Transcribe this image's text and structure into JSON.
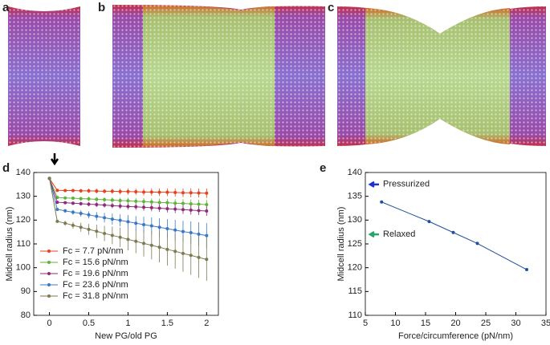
{
  "panel_labels": [
    "a",
    "b",
    "c",
    "d",
    "e"
  ],
  "chart_data": [
    {
      "type": "line",
      "xlabel": "New PG/old PG",
      "ylabel": "Midcell radius (nm)",
      "xlim": [
        -0.2,
        2.15
      ],
      "xticks": [
        0,
        0.5,
        1,
        1.5,
        2
      ],
      "ylim": [
        80,
        140
      ],
      "yticks": [
        80,
        90,
        100,
        110,
        120,
        130,
        140
      ],
      "x": [
        0,
        0.1,
        0.2,
        0.3,
        0.4,
        0.5,
        0.6,
        0.7,
        0.8,
        0.9,
        1.0,
        1.1,
        1.2,
        1.3,
        1.4,
        1.5,
        1.6,
        1.7,
        1.8,
        1.9,
        2.0
      ],
      "series": [
        {
          "name": "Fc = 7.7 pN/nm",
          "color": "#e8401c",
          "values": [
            137.5,
            132.5,
            132.4,
            132.4,
            132.3,
            132.3,
            132.2,
            132.1,
            132.1,
            132.0,
            132.0,
            131.9,
            131.8,
            131.8,
            131.7,
            131.7,
            131.6,
            131.5,
            131.5,
            131.4,
            131.3
          ],
          "errors": [
            0,
            0.5,
            0.6,
            0.7,
            0.8,
            0.9,
            1.0,
            1.0,
            1.1,
            1.2,
            1.3,
            1.3,
            1.4,
            1.5,
            1.6,
            1.6,
            1.7,
            1.8,
            1.9,
            1.9,
            2.0
          ]
        },
        {
          "name": "Fc = 15.6 pN/nm",
          "color": "#5fb33a",
          "values": [
            137.5,
            129.5,
            129.3,
            129.2,
            129.0,
            128.9,
            128.7,
            128.6,
            128.4,
            128.2,
            128.1,
            127.9,
            127.8,
            127.6,
            127.4,
            127.3,
            127.1,
            127.0,
            126.8,
            126.7,
            126.5
          ],
          "errors": [
            0,
            0.5,
            0.6,
            0.7,
            0.8,
            0.9,
            1.0,
            1.0,
            1.1,
            1.2,
            1.3,
            1.3,
            1.4,
            1.5,
            1.6,
            1.6,
            1.7,
            1.8,
            1.9,
            1.9,
            2.0
          ]
        },
        {
          "name": "Fc = 19.6 pN/nm",
          "color": "#8e2a7a",
          "values": [
            137.5,
            127.5,
            127.3,
            127.1,
            126.9,
            126.7,
            126.5,
            126.3,
            126.1,
            125.9,
            125.7,
            125.6,
            125.4,
            125.2,
            125.0,
            124.8,
            124.6,
            124.4,
            124.2,
            124.0,
            123.8
          ],
          "errors": [
            0,
            0.5,
            0.6,
            0.7,
            0.8,
            0.9,
            1.0,
            1.0,
            1.1,
            1.2,
            1.3,
            1.3,
            1.4,
            1.5,
            1.6,
            1.6,
            1.7,
            1.8,
            1.9,
            1.9,
            2.0
          ]
        },
        {
          "name": "Fc = 23.6 pN/nm",
          "color": "#3a78c4",
          "values": [
            137.5,
            124.5,
            123.9,
            123.3,
            122.8,
            122.2,
            121.6,
            121.0,
            120.4,
            119.9,
            119.3,
            118.7,
            118.1,
            117.6,
            117.0,
            116.4,
            115.8,
            115.2,
            114.7,
            114.1,
            113.5
          ],
          "errors": [
            0,
            0.5,
            0.8,
            1.0,
            1.3,
            1.5,
            1.8,
            2.0,
            2.3,
            2.5,
            2.8,
            3.0,
            3.3,
            3.5,
            3.8,
            4.0,
            4.3,
            4.5,
            4.8,
            5.0,
            5.2
          ]
        },
        {
          "name": "Fc = 31.8 pN/nm",
          "color": "#7d7a52",
          "values": [
            137.5,
            119.5,
            118.7,
            117.8,
            117.0,
            116.1,
            115.3,
            114.4,
            113.6,
            112.8,
            111.9,
            111.1,
            110.2,
            109.4,
            108.6,
            107.7,
            106.9,
            106.0,
            105.2,
            104.3,
            103.5
          ],
          "errors": [
            0,
            0.5,
            1.0,
            1.4,
            1.9,
            2.3,
            2.8,
            3.2,
            3.7,
            4.1,
            4.6,
            5.0,
            5.5,
            5.9,
            6.4,
            6.8,
            7.3,
            7.7,
            8.2,
            8.6,
            9.0
          ]
        }
      ]
    },
    {
      "type": "line",
      "xlabel": "Force/circumference (pN/nm)",
      "ylabel": "Midcell radius (nm)",
      "xlim": [
        5,
        35
      ],
      "xticks": [
        5,
        10,
        15,
        20,
        25,
        30,
        35
      ],
      "ylim": [
        110,
        140
      ],
      "yticks": [
        110,
        115,
        120,
        125,
        130,
        135,
        140
      ],
      "x": [
        7.7,
        15.6,
        19.6,
        23.6,
        31.8
      ],
      "series": [
        {
          "color": "#1f4e9c",
          "values": [
            133.8,
            129.7,
            127.4,
            125.1,
            119.6
          ]
        }
      ],
      "annotations": [
        {
          "text": "Pressurized",
          "value": 137.5,
          "color": "#1f2fd0"
        },
        {
          "text": "Relaxed",
          "value": 127,
          "color": "#27a36b"
        }
      ]
    }
  ]
}
